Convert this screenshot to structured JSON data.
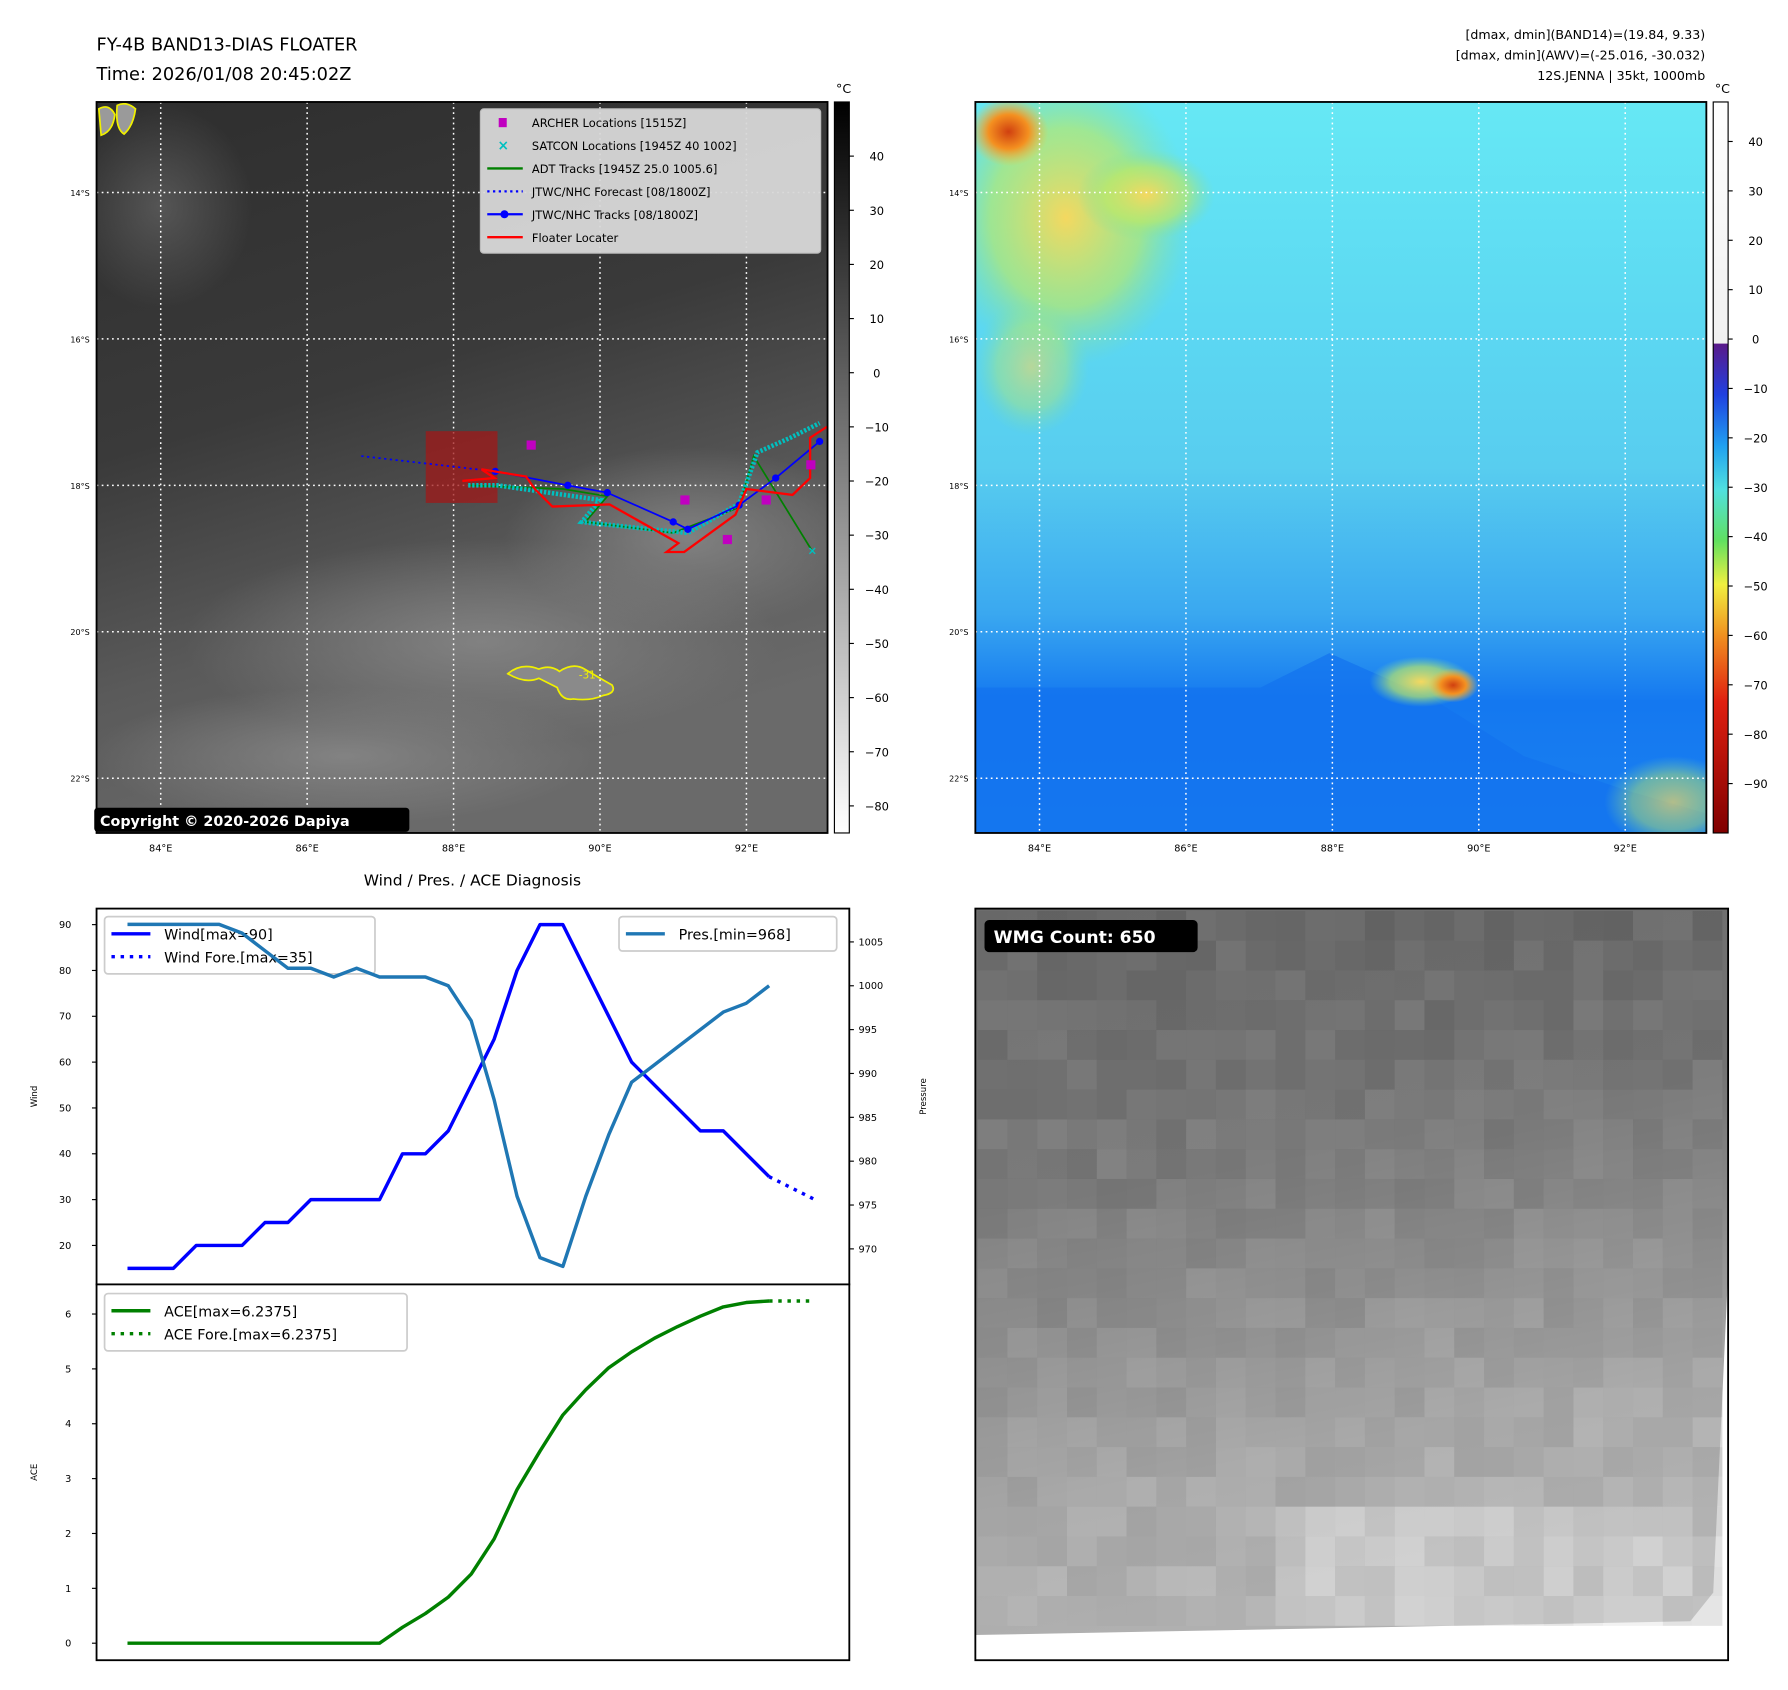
{
  "header": {
    "title": "FY-4B BAND13-DIAS FLOATER",
    "time": "Time: 2026/01/08 20:45:02Z",
    "info_line1": "[dmax, dmin](BAND14)=(19.84, 9.33)",
    "info_line2": "[dmax, dmin](AWV)=(-25.016, -30.032)",
    "info_line3": "12S.JENNA | 35kt, 1000mb"
  },
  "map": {
    "lat_labels": [
      "14°S",
      "16°S",
      "18°S",
      "20°S",
      "22°S"
    ],
    "lat_values": [
      -14,
      -16,
      -18,
      -20,
      -22
    ],
    "lon_labels": [
      "84°E",
      "86°E",
      "88°E",
      "90°E",
      "92°E"
    ],
    "lon_values": [
      84,
      86,
      88,
      90,
      92
    ],
    "copyright": "Copyright © 2020-2026 Dapiya",
    "contour_label": "-31",
    "legend": [
      {
        "label": "ARCHER Locations [1515Z]",
        "color": "#c000c0",
        "icon": "square-marker-icon"
      },
      {
        "label": "SATCON Locations [1945Z 40 1002]",
        "color": "#00c0c0",
        "icon": "x-marker-icon"
      },
      {
        "label": "ADT Tracks [1945Z 25.0 1005.6]",
        "color": "#008000",
        "icon": "line-icon"
      },
      {
        "label": "JTWC/NHC Forecast [08/1800Z]",
        "color": "#0000ff",
        "icon": "dotted-line-icon"
      },
      {
        "label": "JTWC/NHC Tracks [08/1800Z]",
        "color": "#0000ff",
        "icon": "line-dot-icon"
      },
      {
        "label": "Floater Locater",
        "color": "#ff0000",
        "icon": "line-icon"
      }
    ],
    "tracks": {
      "jtwc_forecast": [
        [
          86.74,
          -17.6
        ],
        [
          88.57,
          -17.81
        ]
      ],
      "jtwc": [
        [
          88.57,
          -17.81
        ],
        [
          89.56,
          -18.0
        ],
        [
          90.1,
          -18.1
        ],
        [
          91.0,
          -18.5
        ],
        [
          91.2,
          -18.6
        ],
        [
          91.9,
          -18.27
        ],
        [
          92.4,
          -17.9
        ],
        [
          93.0,
          -17.4
        ]
      ],
      "floater": [
        [
          88.12,
          -17.94
        ],
        [
          88.56,
          -17.9
        ],
        [
          88.38,
          -17.78
        ],
        [
          88.99,
          -17.88
        ],
        [
          89.11,
          -18.05
        ],
        [
          89.35,
          -18.29
        ],
        [
          90.13,
          -18.26
        ],
        [
          91.07,
          -18.79
        ],
        [
          90.91,
          -18.91
        ],
        [
          91.15,
          -18.91
        ],
        [
          91.85,
          -18.4
        ],
        [
          92.0,
          -18.05
        ],
        [
          92.63,
          -18.13
        ],
        [
          92.87,
          -17.9
        ],
        [
          92.87,
          -17.35
        ],
        [
          93.1,
          -17.2
        ]
      ],
      "adt": [
        [
          88.2,
          -18.0
        ],
        [
          89.5,
          -18.05
        ],
        [
          90.1,
          -18.15
        ],
        [
          89.8,
          -18.5
        ],
        [
          91.0,
          -18.65
        ],
        [
          91.9,
          -18.3
        ],
        [
          92.1,
          -17.6
        ],
        [
          92.9,
          -18.9
        ]
      ],
      "satcon": [
        [
          88.2,
          -18.0
        ],
        [
          88.6,
          -18.0
        ],
        [
          89.3,
          -18.1
        ],
        [
          90.0,
          -18.2
        ],
        [
          89.75,
          -18.5
        ],
        [
          90.5,
          -18.58
        ],
        [
          91.2,
          -18.65
        ],
        [
          91.9,
          -18.25
        ],
        [
          92.15,
          -17.55
        ],
        [
          92.6,
          -17.35
        ],
        [
          93.0,
          -17.15
        ]
      ],
      "archer": [
        [
          89.06,
          -17.45
        ],
        [
          91.16,
          -18.2
        ],
        [
          91.74,
          -18.74
        ],
        [
          92.27,
          -18.2
        ],
        [
          92.88,
          -17.72
        ]
      ],
      "floater_box": [
        [
          87.62,
          -17.26
        ],
        [
          88.6,
          -18.24
        ]
      ]
    }
  },
  "left_colorbar": {
    "unit": "°C",
    "ticks": [
      "40",
      "30",
      "20",
      "10",
      "0",
      "−10",
      "−20",
      "−30",
      "−40",
      "−50",
      "−60",
      "−70",
      "−80"
    ],
    "range": [
      50,
      -85
    ]
  },
  "right_colorbar": {
    "unit": "°C",
    "ticks": [
      "40",
      "30",
      "20",
      "10",
      "0",
      "−10",
      "−20",
      "−30",
      "−40",
      "−50",
      "−60",
      "−70",
      "−80",
      "−90"
    ],
    "range": [
      48,
      -100
    ]
  },
  "wmg": {
    "label": "WMG Count: 650"
  },
  "chart_data": [
    {
      "type": "line",
      "title": "Wind / Pres. / ACE Diagnosis",
      "ylabel": "Wind",
      "y2label": "Pressure",
      "xlim": [
        -1.35,
        31.5
      ],
      "ylim": [
        11.5,
        93.5
      ],
      "y2lim": [
        965.95,
        1008.8
      ],
      "yticks": [
        20,
        30,
        40,
        50,
        60,
        70,
        80,
        90
      ],
      "y2ticks": [
        970,
        975,
        980,
        985,
        990,
        995,
        1000,
        1005
      ],
      "series": [
        {
          "name": "Wind[max=90]",
          "axis": "left",
          "color": "#0000ff",
          "style": "solid",
          "x": [
            0,
            1,
            2,
            3,
            4,
            5,
            6,
            7,
            8,
            9,
            10,
            11,
            12,
            13,
            14,
            15,
            16,
            17,
            18,
            19,
            20,
            21,
            22,
            23,
            24,
            25,
            26,
            27,
            28
          ],
          "values": [
            15,
            15,
            15,
            20,
            20,
            20,
            25,
            25,
            30,
            30,
            30,
            30,
            40,
            40,
            45,
            55,
            65,
            80,
            90,
            90,
            80,
            70,
            60,
            55,
            50,
            45,
            45,
            40,
            35
          ]
        },
        {
          "name": "Wind Fore.[max=35]",
          "axis": "left",
          "color": "#0000ff",
          "style": "dotted",
          "x": [
            28,
            30
          ],
          "values": [
            35,
            30
          ]
        },
        {
          "name": "Pres.[min=968]",
          "axis": "right",
          "color": "#1f77b4",
          "style": "solid",
          "x": [
            0,
            1,
            2,
            3,
            4,
            5,
            6,
            7,
            8,
            9,
            10,
            11,
            12,
            13,
            14,
            15,
            16,
            17,
            18,
            19,
            20,
            21,
            22,
            23,
            24,
            25,
            26,
            27,
            28
          ],
          "values": [
            1007,
            1007,
            1007,
            1007,
            1007,
            1006,
            1004,
            1002,
            1002,
            1001,
            1002,
            1001,
            1001,
            1001,
            1000,
            996,
            987,
            976,
            969,
            968,
            976,
            983,
            989,
            991,
            993,
            995,
            997,
            998,
            1000
          ]
        }
      ]
    },
    {
      "type": "line",
      "ylabel": "ACE",
      "xlim": [
        -1.35,
        31.5
      ],
      "ylim": [
        -0.31,
        6.54
      ],
      "yticks": [
        0,
        1,
        2,
        3,
        4,
        5,
        6
      ],
      "series": [
        {
          "name": "ACE[max=6.2375]",
          "color": "#008000",
          "style": "solid",
          "x": [
            0,
            1,
            2,
            3,
            4,
            5,
            6,
            7,
            8,
            9,
            10,
            11,
            12,
            13,
            14,
            15,
            16,
            17,
            18,
            19,
            20,
            21,
            22,
            23,
            24,
            25,
            26,
            27,
            28
          ],
          "values": [
            0,
            0,
            0,
            0,
            0,
            0,
            0,
            0,
            0,
            0,
            0,
            0,
            0.29,
            0.54,
            0.84,
            1.26,
            1.9,
            2.8,
            3.5,
            4.16,
            4.62,
            5.02,
            5.31,
            5.56,
            5.77,
            5.96,
            6.13,
            6.21,
            6.2375
          ]
        },
        {
          "name": "ACE Fore.[max=6.2375]",
          "color": "#008000",
          "style": "dotted",
          "x": [
            28,
            30
          ],
          "values": [
            6.2375,
            6.2375
          ]
        }
      ]
    }
  ]
}
